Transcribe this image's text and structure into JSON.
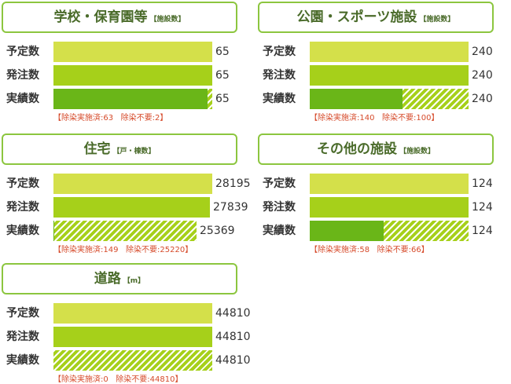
{
  "row_labels": {
    "planned": "予定数",
    "ordered": "発注数",
    "done": "実績数"
  },
  "colors": {
    "planned": "#d4e04a",
    "ordered": "#a6d01a",
    "implemented": "#6ab618",
    "no_need_hatch": "#a6d01a",
    "frame": "#8cc63f",
    "note": "#d64a2a"
  },
  "chart_data": [
    {
      "type": "bar",
      "title": "学校・保育園等",
      "unit": "【施設数】",
      "categories": [
        "予定数",
        "発注数",
        "実績数"
      ],
      "values": [
        65,
        65,
        65
      ],
      "series": [
        {
          "name": "除染実施済",
          "values": [
            null,
            null,
            63
          ]
        },
        {
          "name": "除染不要",
          "values": [
            null,
            null,
            2
          ]
        }
      ],
      "note": {
        "implemented_label": "【除染実施済:63",
        "no_need_label": "除染不要:2】"
      },
      "value_labels": [
        "65",
        "65",
        "65"
      ],
      "max": 65
    },
    {
      "type": "bar",
      "title": "公園・スポーツ施設",
      "unit": "【施設数】",
      "categories": [
        "予定数",
        "発注数",
        "実績数"
      ],
      "values": [
        240,
        240,
        240
      ],
      "series": [
        {
          "name": "除染実施済",
          "values": [
            null,
            null,
            140
          ]
        },
        {
          "name": "除染不要",
          "values": [
            null,
            null,
            100
          ]
        }
      ],
      "note": {
        "implemented_label": "【除染実施済:140",
        "no_need_label": "除染不要:100】"
      },
      "value_labels": [
        "240",
        "240",
        "240"
      ],
      "max": 240
    },
    {
      "type": "bar",
      "title": "住宅",
      "unit": "【戸・棟数】",
      "categories": [
        "予定数",
        "発注数",
        "実績数"
      ],
      "values": [
        28195,
        27839,
        25369
      ],
      "series": [
        {
          "name": "除染実施済",
          "values": [
            null,
            null,
            149
          ]
        },
        {
          "name": "除染不要",
          "values": [
            null,
            null,
            25220
          ]
        }
      ],
      "note": {
        "implemented_label": "【除染実施済:149",
        "no_need_label": "除染不要:25220】"
      },
      "value_labels": [
        "28195",
        "27839",
        "25369"
      ],
      "max": 28195
    },
    {
      "type": "bar",
      "title": "その他の施設",
      "unit": "【施設数】",
      "categories": [
        "予定数",
        "発注数",
        "実績数"
      ],
      "values": [
        124,
        124,
        124
      ],
      "series": [
        {
          "name": "除染実施済",
          "values": [
            null,
            null,
            58
          ]
        },
        {
          "name": "除染不要",
          "values": [
            null,
            null,
            66
          ]
        }
      ],
      "note": {
        "implemented_label": "【除染実施済:58",
        "no_need_label": "除染不要:66】"
      },
      "value_labels": [
        "124",
        "124",
        "124"
      ],
      "max": 124
    },
    {
      "type": "bar",
      "title": "道路",
      "unit": "【m】",
      "categories": [
        "予定数",
        "発注数",
        "実績数"
      ],
      "values": [
        44810,
        44810,
        44810
      ],
      "series": [
        {
          "name": "除染実施済",
          "values": [
            null,
            null,
            0
          ]
        },
        {
          "name": "除染不要",
          "values": [
            null,
            null,
            44810
          ]
        }
      ],
      "note": {
        "implemented_label": "【除染実施済:0",
        "no_need_label": "除染不要:44810】"
      },
      "value_labels": [
        "44810",
        "44810",
        "44810"
      ],
      "max": 44810
    }
  ]
}
